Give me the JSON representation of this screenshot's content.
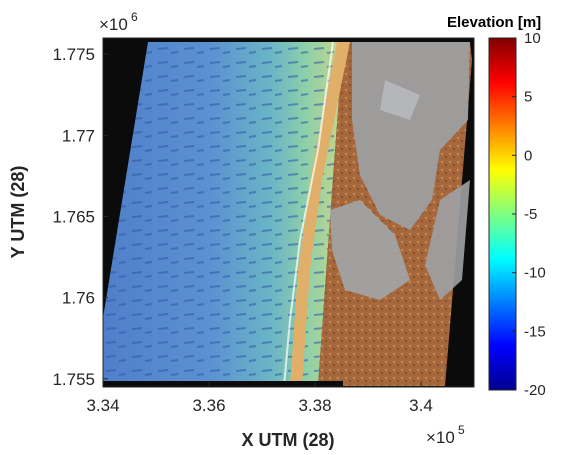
{
  "chart_data": {
    "type": "heatmap",
    "title": "",
    "xlabel": "X UTM (28)",
    "ylabel": "Y UTM (28)",
    "x_multiplier": {
      "base": "×10",
      "exponent": "5"
    },
    "y_multiplier": {
      "base": "×10",
      "exponent": "6"
    },
    "xlim": [
      3.34,
      3.41
    ],
    "ylim": [
      1.7545,
      1.776
    ],
    "x_ticks": [
      3.34,
      3.36,
      3.38,
      3.4
    ],
    "x_tick_labels": [
      "3.34",
      "3.36",
      "3.38",
      "3.4"
    ],
    "y_ticks": [
      1.755,
      1.76,
      1.765,
      1.77,
      1.775
    ],
    "y_tick_labels": [
      "1.755",
      "1.76",
      "1.765",
      "1.77",
      "1.775"
    ],
    "colorbar": {
      "title": "Elevation [m]",
      "range": [
        -20,
        10
      ],
      "ticks": [
        10,
        5,
        0,
        -5,
        -10,
        -15,
        -20
      ],
      "tick_labels": [
        "10",
        "5",
        "0",
        "-5",
        "-10",
        "-15",
        "-20"
      ],
      "colormap": "jet"
    },
    "colors": {
      "background": "#0b0b0b",
      "deep_water": "#5a8cd6",
      "shallow_water": "#6ec6b4",
      "beach": "#d9a35a",
      "land": "#a0663c",
      "lagoon": "#9b9ea2"
    },
    "grid": false
  }
}
